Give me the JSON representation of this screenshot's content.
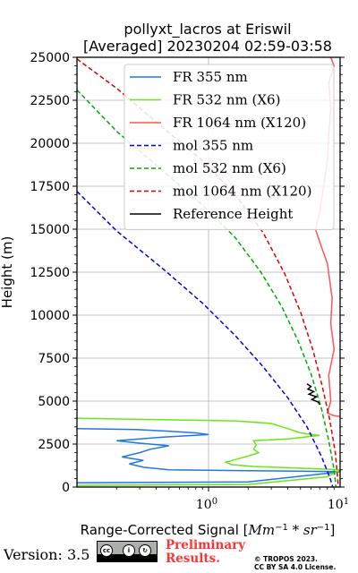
{
  "footer": {
    "version": "Version: 3.5",
    "preliminary_line1": "Preliminary",
    "preliminary_line2": "Results.",
    "copyright_line1": "© TROPOS 2023.",
    "copyright_line2": "CC BY SA 4.0 License.",
    "license_badge": "cc by sa"
  },
  "chart_data": {
    "type": "line",
    "title_line1": "pollyxt_lacros at Eriswil",
    "title_line2": "[Averaged] 20230204 02:59-03:58",
    "xlabel": "Range-Corrected Signal [$Mm^{-1}*sr^{-1}$]",
    "ylabel": "Height (m)",
    "xscale": "log",
    "xlim": [
      0.1,
      10
    ],
    "ylim": [
      0,
      25000
    ],
    "xticks": [
      1,
      10
    ],
    "yticks": [
      0,
      2500,
      5000,
      7500,
      10000,
      12500,
      15000,
      17500,
      20000,
      22500,
      25000
    ],
    "ytick_labels": [
      "0",
      "2500",
      "5000",
      "7500",
      "10000",
      "12500",
      "15000",
      "17500",
      "20000",
      "22500",
      "25000"
    ],
    "grid": true,
    "legend_position": "top-right",
    "series": [
      {
        "name": "FR 355 nm",
        "color": "#1f77e5",
        "style": "solid",
        "points": [
          [
            0.1,
            250
          ],
          [
            2,
            300
          ],
          [
            8,
            800
          ],
          [
            10,
            900
          ],
          [
            0.5,
            1000
          ],
          [
            0.32,
            1150
          ],
          [
            0.25,
            1350
          ],
          [
            0.32,
            1550
          ],
          [
            0.22,
            1750
          ],
          [
            0.3,
            2000
          ],
          [
            0.36,
            2200
          ],
          [
            0.5,
            2400
          ],
          [
            0.3,
            2550
          ],
          [
            0.2,
            2700
          ],
          [
            0.45,
            2900
          ],
          [
            1.0,
            3050
          ],
          [
            0.8,
            3150
          ],
          [
            0.5,
            3250
          ],
          [
            0.28,
            3350
          ],
          [
            0.1,
            3400
          ]
        ]
      },
      {
        "name": "FR 532 nm (X6)",
        "color": "#6be616",
        "style": "solid",
        "points": [
          [
            0.1,
            100
          ],
          [
            2,
            150
          ],
          [
            8,
            600
          ],
          [
            10,
            1000
          ],
          [
            5,
            1100
          ],
          [
            2.2,
            1200
          ],
          [
            1.5,
            1300
          ],
          [
            1.35,
            1450
          ],
          [
            1.6,
            1600
          ],
          [
            2,
            1800
          ],
          [
            2.4,
            2000
          ],
          [
            2.2,
            2200
          ],
          [
            2.3,
            2450
          ],
          [
            2.2,
            2700
          ],
          [
            4,
            2800
          ],
          [
            7,
            3000
          ],
          [
            5,
            3150
          ],
          [
            4,
            3400
          ],
          [
            3,
            3700
          ],
          [
            1.6,
            3850
          ],
          [
            0.1,
            4000
          ]
        ]
      },
      {
        "name": "FR 1064 nm (X120)",
        "color": "#ff5555",
        "style": "solid",
        "points": [
          [
            10,
            4100
          ],
          [
            9,
            4150
          ],
          [
            8,
            4300
          ],
          [
            8.5,
            5000
          ],
          [
            8.2,
            6500
          ],
          [
            9,
            8000
          ],
          [
            8.5,
            9500
          ],
          [
            8.7,
            11000
          ],
          [
            8,
            13000
          ],
          [
            7.2,
            14000
          ],
          [
            6.5,
            15000
          ],
          [
            7,
            16000
          ],
          [
            7.5,
            17500
          ],
          [
            8,
            19000
          ],
          [
            8.2,
            20500
          ],
          [
            8.5,
            22000
          ],
          [
            8.2,
            23500
          ],
          [
            9,
            24500
          ],
          [
            8.5,
            25000
          ]
        ]
      },
      {
        "name": "mol 355 nm",
        "color": "#0000dd",
        "style": "dashed",
        "points": [
          [
            0.1,
            17200
          ],
          [
            0.2,
            14900
          ],
          [
            0.45,
            12700
          ],
          [
            0.9,
            10700
          ],
          [
            1.6,
            8800
          ],
          [
            2.6,
            7000
          ],
          [
            4.0,
            5200
          ],
          [
            5.6,
            3500
          ],
          [
            7.2,
            1800
          ],
          [
            8.4,
            500
          ],
          [
            8.8,
            0
          ]
        ]
      },
      {
        "name": "mol 532 nm (X6)",
        "color": "#00aa00",
        "style": "dashed",
        "points": [
          [
            0.1,
            23100
          ],
          [
            0.2,
            20700
          ],
          [
            0.45,
            18400
          ],
          [
            0.9,
            16400
          ],
          [
            1.6,
            14500
          ],
          [
            2.5,
            12500
          ],
          [
            3.6,
            10500
          ],
          [
            4.8,
            8500
          ],
          [
            6.0,
            6600
          ],
          [
            7.2,
            4600
          ],
          [
            8.2,
            2700
          ],
          [
            9.0,
            1000
          ],
          [
            9.3,
            0
          ]
        ]
      },
      {
        "name": "mol 1064 nm (X120)",
        "color": "#dd0000",
        "style": "dashed",
        "points": [
          [
            0.1,
            24900
          ],
          [
            0.2,
            23200
          ],
          [
            0.45,
            20900
          ],
          [
            0.9,
            19000
          ],
          [
            1.6,
            17000
          ],
          [
            2.6,
            14800
          ],
          [
            3.8,
            12400
          ],
          [
            5.0,
            10200
          ],
          [
            6.2,
            8000
          ],
          [
            7.3,
            5900
          ],
          [
            8.3,
            4000
          ],
          [
            9.2,
            2000
          ],
          [
            9.7,
            0
          ]
        ]
      },
      {
        "name": "Reference Height",
        "color": "#000000",
        "style": "solid",
        "points": [
          [
            5.6,
            6000
          ],
          [
            6.0,
            5850
          ],
          [
            5.7,
            5700
          ],
          [
            6.3,
            5550
          ],
          [
            5.8,
            5400
          ],
          [
            6.6,
            5250
          ],
          [
            6.1,
            5100
          ],
          [
            6.8,
            4950
          ],
          [
            7.0,
            4800
          ]
        ]
      }
    ]
  }
}
